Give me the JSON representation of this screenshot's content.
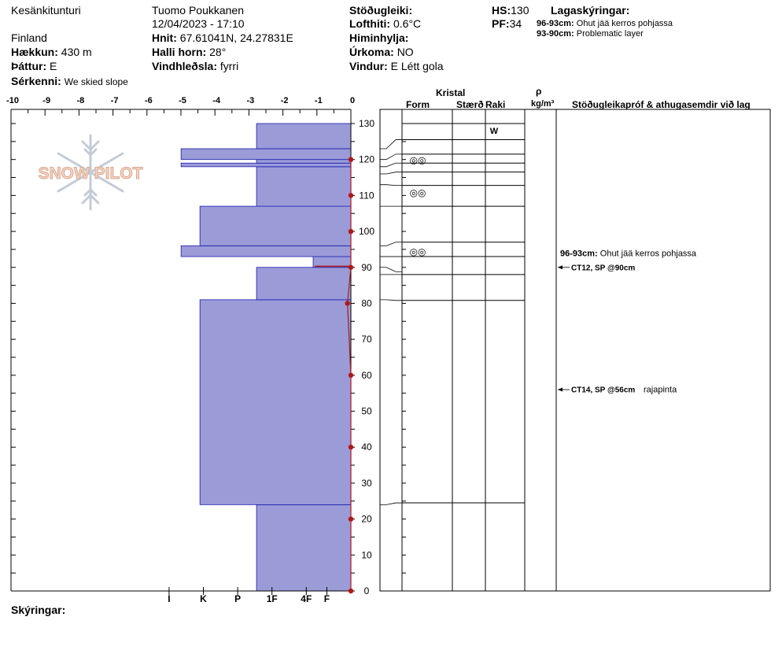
{
  "header": {
    "location": "Kesänkitunturi",
    "country": "Finland",
    "elevation_label": "Hækkun:",
    "elevation_value": "430 m",
    "aspect_label": "Þáttur:",
    "aspect_value": "E",
    "specifics_label": "Sérkenni:",
    "specifics_value": "We skied slope",
    "observer": "Tuomo Poukkanen",
    "datetime": "12/04/2023 - 17:10",
    "coords_label": "Hnit:",
    "coords_value": "67.61041N, 24.27831E",
    "slope_label": "Halli horn:",
    "slope_value": "28°",
    "wind_loading_label": "Vindhleðsla:",
    "wind_loading_value": "fyrri",
    "stability_label": "Stöðugleiki:",
    "air_temp_label": "Lofthiti:",
    "air_temp_value": "0.6°C",
    "sky_label": "Himinhylja:",
    "precip_label": "Úrkoma:",
    "precip_value": "NO",
    "wind_label": "Vindur:",
    "wind_value": "E Létt gola",
    "hs_label": "HS:",
    "hs_value": "130",
    "pf_label": "PF:",
    "pf_value": "34",
    "legend_title": "Lagaskýringar:",
    "legend_items": [
      {
        "range": "96-93cm:",
        "text": "Ohut jää kerros pohjassa"
      },
      {
        "range": "93-90cm:",
        "text": "Problematic layer"
      }
    ]
  },
  "logo_text": "SNOW PILOT",
  "table_headers": {
    "crystal": "Kristal",
    "form": "Form",
    "size": "Stærð",
    "moisture": "Raki",
    "rho": "ρ",
    "density_unit": "kg/m³",
    "stability_notes": "Stöðugleikapróf & athugasemdir við lag"
  },
  "footer_label": "Skýringar:",
  "chart_data": {
    "type": "snow-profile",
    "temp_axis": {
      "ticks": [
        "-10",
        "-9",
        "-8",
        "-7",
        "-6",
        "-5",
        "-4",
        "-3",
        "-2",
        "-1",
        "0"
      ],
      "range": [
        -10,
        0
      ]
    },
    "height_axis": {
      "ticks": [
        "130",
        "120",
        "110",
        "100",
        "90",
        "80",
        "70",
        "60",
        "50",
        "40",
        "30",
        "20",
        "10",
        "0"
      ],
      "range": [
        0,
        130
      ]
    },
    "hardness_axis": {
      "labels": [
        "I",
        "K",
        "P",
        "1F",
        "4F",
        "F"
      ],
      "values": [
        5.3,
        4.3,
        3.3,
        2.3,
        1.3,
        0.7
      ]
    },
    "hardness_layers": [
      {
        "bottom": 0,
        "top": 24,
        "hardness": 2.75
      },
      {
        "bottom": 24,
        "top": 81,
        "hardness": 4.4
      },
      {
        "bottom": 81,
        "top": 90,
        "hardness": 2.75
      },
      {
        "bottom": 90,
        "top": 93,
        "hardness": 1.1
      },
      {
        "bottom": 93,
        "top": 96,
        "hardness": 4.95
      },
      {
        "bottom": 96,
        "top": 107,
        "hardness": 4.4
      },
      {
        "bottom": 107,
        "top": 118,
        "hardness": 2.75
      },
      {
        "bottom": 118,
        "top": 119,
        "hardness": 4.95
      },
      {
        "bottom": 119,
        "top": 120,
        "hardness": 2.75
      },
      {
        "bottom": 120,
        "top": 123,
        "hardness": 4.95
      },
      {
        "bottom": 123,
        "top": 130,
        "hardness": 2.75
      }
    ],
    "temperature_profile": [
      {
        "height": 0,
        "temp": 0
      },
      {
        "height": 20,
        "temp": 0
      },
      {
        "height": 40,
        "temp": 0
      },
      {
        "height": 60,
        "temp": 0
      },
      {
        "height": 80,
        "temp": -0.1
      },
      {
        "height": 90,
        "temp": 0
      },
      {
        "height": 100,
        "temp": 0
      },
      {
        "height": 110,
        "temp": 0
      },
      {
        "height": 120,
        "temp": 0
      }
    ],
    "layer_boundaries": [
      24,
      81,
      88,
      90,
      93,
      96,
      107,
      113,
      116,
      118,
      119,
      120,
      123,
      125,
      130
    ],
    "layer_boundaries_drawn": [
      24.5,
      80.8,
      88.0,
      93.0,
      97.0,
      107.0,
      112.8,
      116.5,
      119.0,
      121.5,
      125.5,
      130.0
    ],
    "grain_symbols": [
      {
        "height": 120,
        "symbol": "◎◎"
      },
      {
        "height": 111,
        "symbol": "◎◎"
      },
      {
        "height": 94.5,
        "symbol": "◎◎"
      }
    ],
    "moisture_labels": [
      {
        "height": 128,
        "text": "W"
      }
    ],
    "layer_comments": [
      {
        "height": 94,
        "range": "96-93cm:",
        "text": "Ohut jää kerros pohjassa"
      }
    ],
    "stability_tests": [
      {
        "height": 90,
        "text": "CT12, SP @90cm",
        "extra": ""
      },
      {
        "height": 56,
        "text": "CT14, SP @56cm",
        "extra": "rajapinta"
      }
    ]
  }
}
